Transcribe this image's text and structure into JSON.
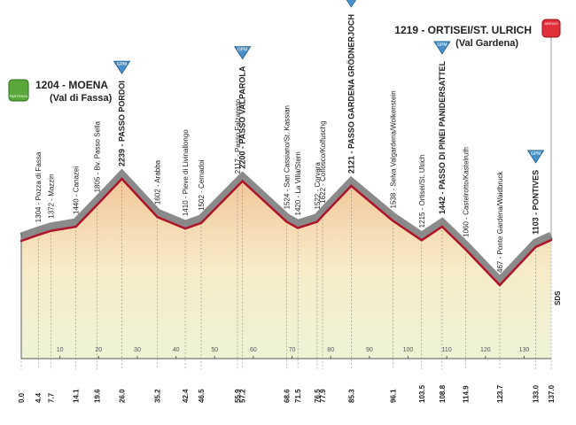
{
  "chart_data": {
    "type": "profile",
    "x": [
      {
        "value": 0,
        "label": "0.0"
      },
      4.4,
      7.7,
      14.1,
      19.6,
      {
        "value": 26,
        "label": "26.0"
      },
      35.2,
      42.4,
      46.5,
      55.9,
      57.2,
      68.6,
      71.5,
      76.5,
      77.9,
      85.3,
      96.1,
      103.5,
      108.8,
      114.9,
      123.7,
      {
        "value": 133,
        "label": "133.0"
      },
      {
        "value": 137,
        "label": "137.0"
      }
    ],
    "values": [
      1204,
      1304,
      1372,
      1440,
      1805,
      2239,
      1602,
      1410,
      1502,
      2117,
      2200,
      1524,
      1420,
      1522,
      1622,
      2121,
      1538,
      1215,
      1442,
      1060,
      467,
      1103,
      1219
    ],
    "value_labels": [
      "1204 - MOENA",
      "1304 - Pozza di Fassa",
      "1372 - Mazzin",
      "1440 - Canazei",
      "1805 - Bv. Passo Sella",
      "2239 - PASSO PORDOI",
      "1602 - Arabba",
      "1410 - Pieve di Livinallongo",
      "1502 - Cernadoi",
      "2117 - Passo Falzarego",
      "2200 - PASSO VALPAROLA",
      "1524 - San Cassiano/St. Kassian",
      "1420 - La Villa/Stern",
      "1522 - Corvara",
      "1622 - Colfosco/Kolfuschg",
      "2121 - PASSO GARDENA GRÖDNERJOCH",
      "1538 - Selva Valgardena/Wolkenstein",
      "1215 - Ortisei/St. Ulrich",
      "1442 - PASSO DI PINEI PANIDERSATTEL",
      "1060 - Castelrotto/Kastelruth",
      "467 - Ponte Gardena/Waidbruck",
      "1103 - PONTIVES",
      "1219 - ORTISEI/ST. ULRICH"
    ],
    "gpm": [
      false,
      false,
      false,
      false,
      false,
      true,
      false,
      false,
      false,
      false,
      true,
      false,
      false,
      false,
      false,
      true,
      false,
      false,
      true,
      false,
      false,
      true,
      false
    ],
    "gpm_label": "GPM",
    "start": {
      "region": "(Val di Fassa)",
      "icon": "PARTENZA"
    },
    "finish": {
      "region": "(Val Gardena)",
      "icon": "ARRIVO"
    },
    "xticks": [
      10,
      20,
      30,
      40,
      50,
      60,
      70,
      80,
      90,
      100,
      110,
      120,
      130
    ],
    "sds": "SDS",
    "color": "#b0142a"
  }
}
